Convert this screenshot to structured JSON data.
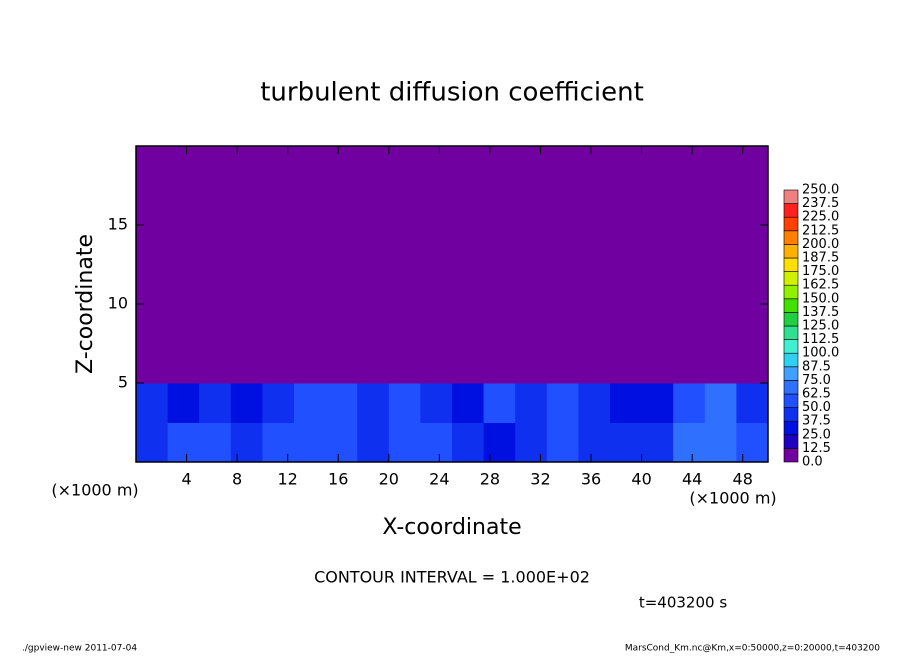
{
  "chart_data": {
    "type": "heatmap",
    "title": "turbulent diffusion coefficient",
    "xlabel": "X-coordinate",
    "ylabel": "Z-coordinate",
    "x_unit": "(×1000 m)",
    "y_unit": "(×1000 m)",
    "xlim": [
      0,
      50
    ],
    "ylim": [
      0,
      20
    ],
    "xticks": [
      4,
      8,
      12,
      16,
      20,
      24,
      28,
      32,
      36,
      40,
      44,
      48
    ],
    "yticks": [
      5,
      10,
      15
    ],
    "xbins": [
      0,
      2.5,
      5,
      7.5,
      10,
      12.5,
      15,
      17.5,
      20,
      22.5,
      25,
      27.5,
      30,
      32.5,
      35,
      37.5,
      40,
      42.5,
      45,
      47.5,
      50
    ],
    "ybins": [
      0,
      2.5,
      5,
      7.5,
      10,
      12.5,
      15,
      17.5,
      20
    ],
    "values": [
      [
        45,
        50,
        55,
        45,
        50,
        60,
        50,
        45,
        55,
        50,
        40,
        35,
        40,
        50,
        45,
        40,
        45,
        65,
        70,
        60
      ],
      [
        40,
        35,
        40,
        30,
        45,
        55,
        50,
        45,
        50,
        40,
        35,
        50,
        45,
        55,
        40,
        30,
        25,
        50,
        65,
        45
      ],
      [
        3,
        4,
        3,
        2,
        2,
        3,
        2,
        1,
        0,
        0,
        0,
        0,
        0,
        5,
        3,
        1,
        2,
        1,
        3,
        4
      ],
      [
        6,
        8,
        5,
        4,
        5,
        6,
        8,
        5,
        7,
        6,
        4,
        5,
        8,
        10,
        9,
        7,
        3,
        4,
        3,
        2
      ],
      [
        3,
        2,
        5,
        4,
        6,
        4,
        3,
        5,
        4,
        3,
        5,
        4,
        3,
        2,
        2,
        2,
        3,
        1,
        2,
        1
      ],
      [
        2,
        1,
        0,
        0,
        0,
        0,
        0,
        1,
        0,
        0,
        1,
        0,
        0,
        0,
        0,
        0,
        0,
        0,
        0,
        0
      ],
      [
        0,
        0,
        0,
        0,
        0,
        0,
        0,
        0,
        0,
        0,
        0,
        0,
        0,
        0,
        0,
        0,
        0,
        0,
        0,
        0
      ],
      [
        0,
        0,
        0,
        0,
        0,
        0,
        0,
        0,
        0,
        0,
        0,
        0,
        0,
        0,
        0,
        0,
        0,
        0,
        0,
        0
      ]
    ],
    "levels": [
      {
        "value": 0,
        "label": "0.0"
      },
      {
        "value": 12.5,
        "label": "12.5"
      },
      {
        "value": 25,
        "label": "25.0"
      },
      {
        "value": 37.5,
        "label": "37.5"
      },
      {
        "value": 50,
        "label": "50.0"
      },
      {
        "value": 62.5,
        "label": "62.5"
      },
      {
        "value": 75,
        "label": "75.0"
      },
      {
        "value": 87.5,
        "label": "87.5"
      },
      {
        "value": 100,
        "label": "100.0"
      },
      {
        "value": 112.5,
        "label": "112.5"
      },
      {
        "value": 125,
        "label": "125.0"
      },
      {
        "value": 137.5,
        "label": "137.5"
      },
      {
        "value": 150,
        "label": "150.0"
      },
      {
        "value": 162.5,
        "label": "162.5"
      },
      {
        "value": 175,
        "label": "175.0"
      },
      {
        "value": 187.5,
        "label": "187.5"
      },
      {
        "value": 200,
        "label": "200.0"
      },
      {
        "value": 212.5,
        "label": "212.5"
      },
      {
        "value": 225,
        "label": "225.0"
      },
      {
        "value": 237.5,
        "label": "237.5"
      },
      {
        "value": 250,
        "label": "250.0"
      }
    ],
    "colors": [
      "#7000a0",
      "#2000c0",
      "#0010e0",
      "#1030f0",
      "#2050ff",
      "#3070ff",
      "#40a0ff",
      "#30d0f0",
      "#40f0d0",
      "#30e090",
      "#20d040",
      "#40e000",
      "#90f000",
      "#d0f000",
      "#ffe000",
      "#ffb000",
      "#ff8000",
      "#ff4000",
      "#ff2020",
      "#f08080"
    ],
    "annotations": [
      "CONTOUR INTERVAL = 1.000E+02",
      "t=403200 s",
      "./gpview-new  2011-07-04",
      "MarsCond_Km.nc@Km,x=0:50000,z=0:20000,t=403200"
    ]
  }
}
